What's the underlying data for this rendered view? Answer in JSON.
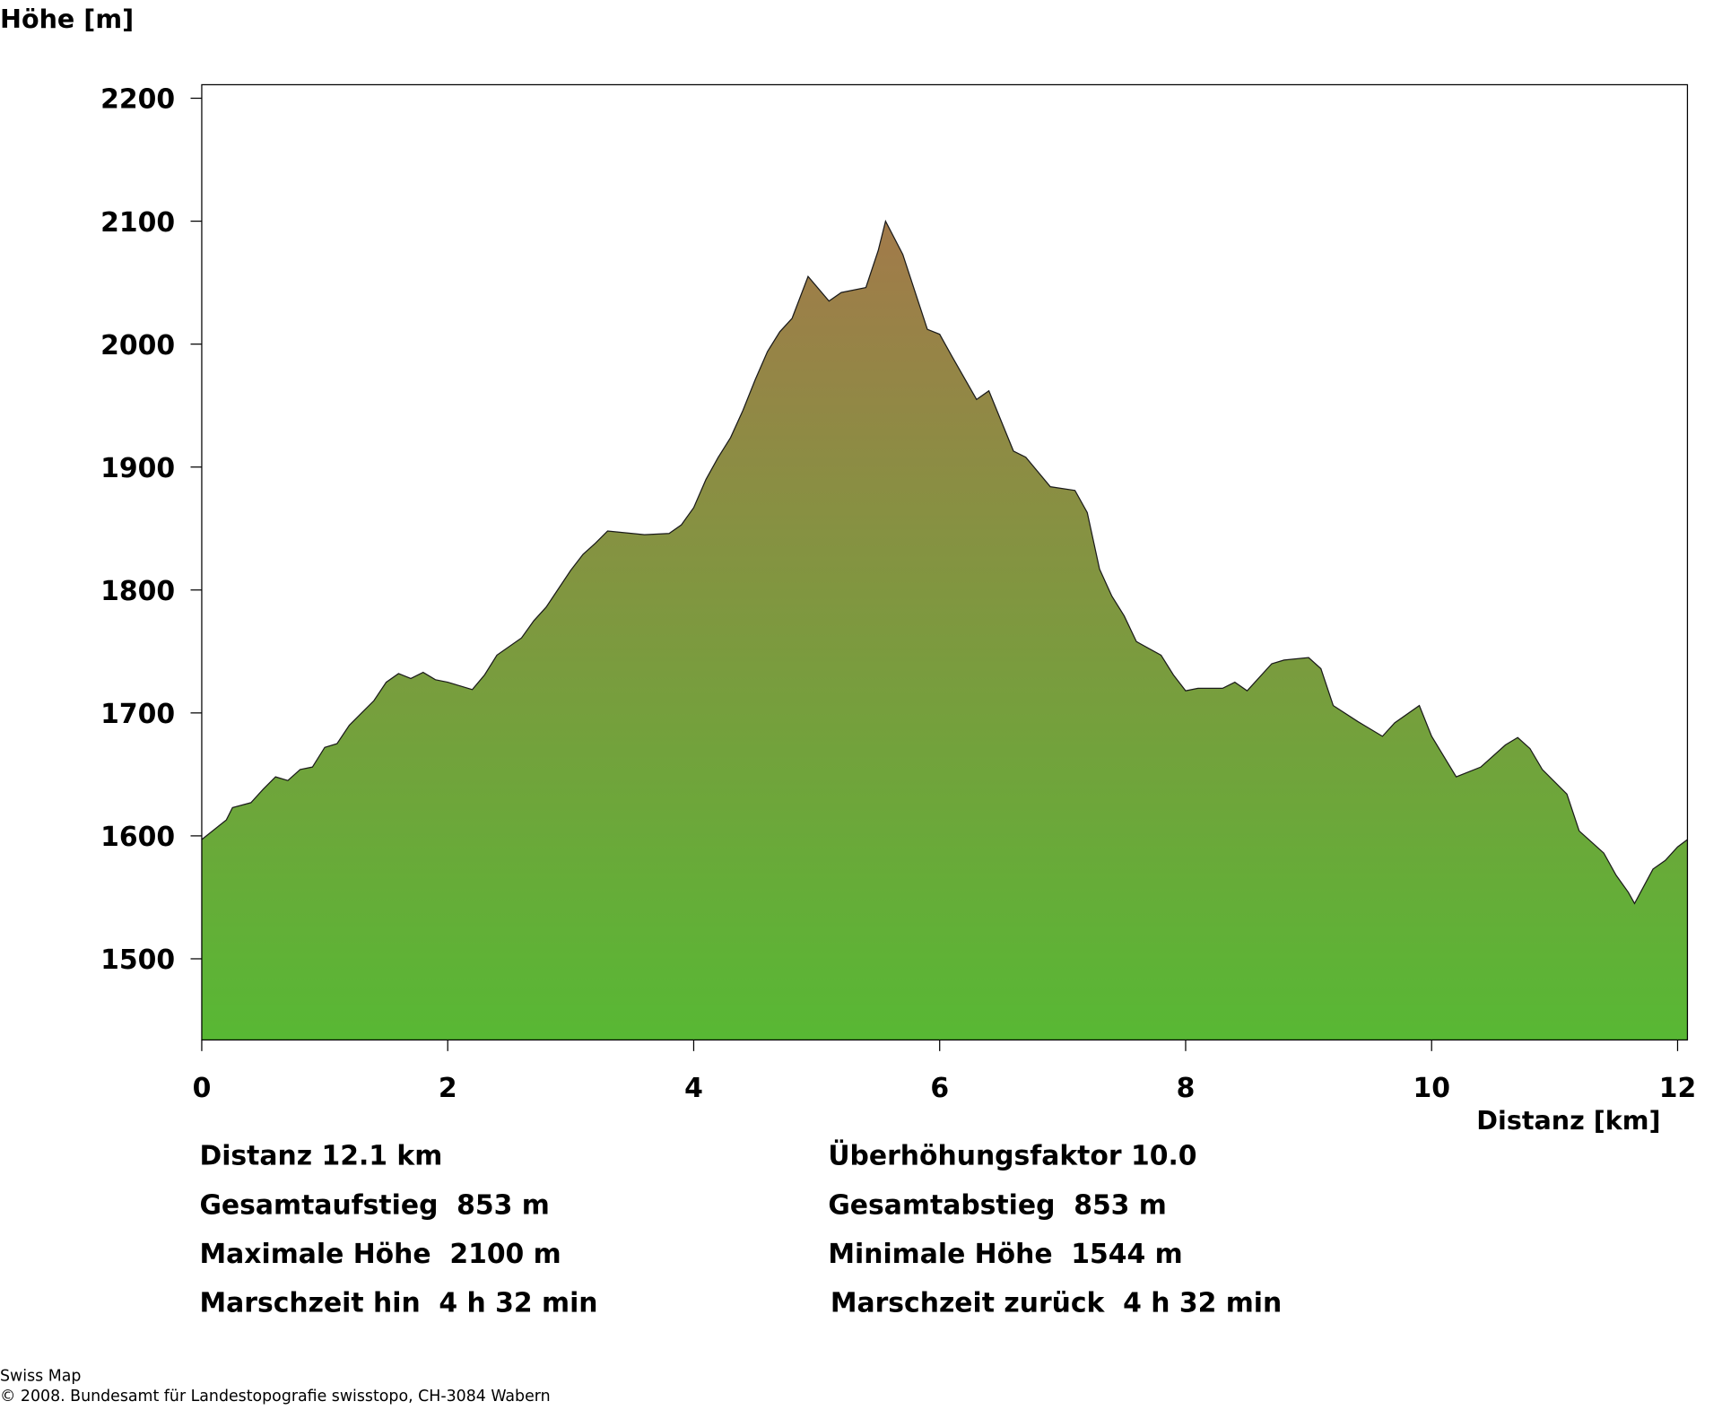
{
  "chart_data": {
    "type": "area",
    "y_label": "Höhe [m]",
    "x_label": "Distanz [km]",
    "x": [
      0,
      0.2,
      0.25,
      0.4,
      0.5,
      0.6,
      0.7,
      0.8,
      0.9,
      1.0,
      1.1,
      1.2,
      1.3,
      1.4,
      1.5,
      1.6,
      1.7,
      1.8,
      1.9,
      2.0,
      2.1,
      2.2,
      2.3,
      2.4,
      2.6,
      2.7,
      2.8,
      3.0,
      3.1,
      3.2,
      3.3,
      3.5,
      3.6,
      3.8,
      3.9,
      4.0,
      4.1,
      4.2,
      4.3,
      4.4,
      4.5,
      4.6,
      4.7,
      4.8,
      4.93,
      5.1,
      5.2,
      5.4,
      5.5,
      5.56,
      5.7,
      5.9,
      6.0,
      6.1,
      6.3,
      6.4,
      6.6,
      6.7,
      6.9,
      7.1,
      7.2,
      7.3,
      7.4,
      7.5,
      7.6,
      7.8,
      7.9,
      8.0,
      8.1,
      8.3,
      8.4,
      8.5,
      8.7,
      8.8,
      9.0,
      9.1,
      9.2,
      9.4,
      9.6,
      9.7,
      9.9,
      10.0,
      10.2,
      10.4,
      10.6,
      10.7,
      10.8,
      10.9,
      11.1,
      11.2,
      11.4,
      11.5,
      11.6,
      11.65,
      11.8,
      11.9,
      12.0,
      12.08
    ],
    "values": [
      1597,
      1613,
      1623,
      1627,
      1638,
      1648,
      1645,
      1654,
      1656,
      1672,
      1675,
      1690,
      1700,
      1710,
      1725,
      1732,
      1728,
      1733,
      1727,
      1725,
      1722,
      1719,
      1731,
      1747,
      1761,
      1775,
      1786,
      1816,
      1829,
      1838,
      1848,
      1846,
      1845,
      1846,
      1853,
      1867,
      1890,
      1908,
      1924,
      1946,
      1971,
      1994,
      2010,
      2021,
      2055,
      2035,
      2042,
      2046,
      2076,
      2100,
      2073,
      2012,
      2008,
      1990,
      1955,
      1962,
      1913,
      1908,
      1884,
      1881,
      1863,
      1817,
      1795,
      1779,
      1758,
      1747,
      1731,
      1718,
      1720,
      1720,
      1725,
      1718,
      1740,
      1743,
      1745,
      1736,
      1706,
      1693,
      1681,
      1692,
      1706,
      1681,
      1648,
      1656,
      1674,
      1680,
      1671,
      1654,
      1634,
      1604,
      1586,
      1568,
      1554,
      1545,
      1573,
      1580,
      1591,
      1597
    ],
    "xlim": [
      0,
      12.08
    ],
    "ylim": [
      1434,
      2211
    ],
    "xticks": [
      0,
      2,
      4,
      6,
      8,
      10,
      12
    ],
    "yticks": [
      1500,
      1600,
      1700,
      1800,
      1900,
      2000,
      2100,
      2200
    ],
    "color_top": "#a27a4a",
    "color_bottom": "#58b834",
    "line_color": "#1a1a1a"
  },
  "stats_left": [
    "Distanz 12.1 km",
    "Gesamtaufstieg  853 m",
    "Maximale Höhe  2100 m",
    "Marschzeit hin  4 h 32 min"
  ],
  "stats_right": [
    "Überhöhungsfaktor 10.0",
    "Gesamtabstieg  853 m",
    "Minimale Höhe  1544 m",
    "Marschzeit zurück  4 h 32 min"
  ],
  "footer": [
    "Swiss Map",
    "© 2008. Bundesamt für Landestopografie swisstopo, CH-3084 Wabern"
  ]
}
